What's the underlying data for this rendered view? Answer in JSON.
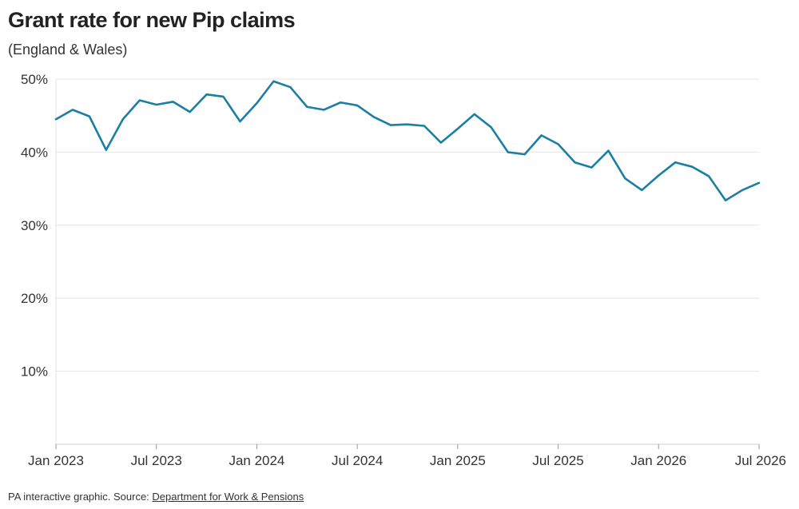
{
  "title": "Grant rate for new Pip claims",
  "subtitle": "(England & Wales)",
  "footer": {
    "prefix": "PA interactive graphic. Source: ",
    "source_link": "Department for Work & Pensions"
  },
  "colors": {
    "line": "#1a7fa3",
    "grid": "#e6e6e6",
    "axis": "#cccccc"
  },
  "chart_data": {
    "type": "line",
    "title": "Grant rate for new Pip claims",
    "subtitle": "(England & Wales)",
    "xlabel": "",
    "ylabel": "",
    "ylim": [
      0,
      50
    ],
    "yticks": [
      10,
      20,
      30,
      40,
      50
    ],
    "ytick_labels": [
      "10%",
      "20%",
      "30%",
      "40%",
      "50%"
    ],
    "xticks": [
      "2023-01",
      "2023-07",
      "2024-01",
      "2024-07",
      "2025-01",
      "2025-07",
      "2026-01",
      "2026-07"
    ],
    "xtick_labels": [
      "Jan 2023",
      "Jul 2023",
      "Jan 2024",
      "Jul 2024",
      "Jan 2025",
      "Jul 2025",
      "Jan 2026",
      "Jul 2026"
    ],
    "grid": true,
    "x": [
      "2023-01",
      "2023-02",
      "2023-03",
      "2023-04",
      "2023-05",
      "2023-06",
      "2023-07",
      "2023-08",
      "2023-09",
      "2023-10",
      "2023-11",
      "2023-12",
      "2024-01",
      "2024-02",
      "2024-03",
      "2024-04",
      "2024-05",
      "2024-06",
      "2024-07",
      "2024-08",
      "2024-09",
      "2024-10",
      "2024-11",
      "2024-12",
      "2025-01",
      "2025-02",
      "2025-03",
      "2025-04",
      "2025-05",
      "2025-06",
      "2025-07",
      "2025-08",
      "2025-09",
      "2025-10",
      "2025-11",
      "2025-12",
      "2026-01",
      "2026-02",
      "2026-03",
      "2026-04",
      "2026-05",
      "2026-06",
      "2026-07"
    ],
    "series": [
      {
        "values": [
          44.5,
          45.8,
          44.9,
          40.3,
          44.5,
          47.1,
          46.5,
          46.9,
          45.5,
          47.9,
          47.6,
          44.2,
          46.7,
          49.7,
          48.9,
          46.2,
          45.8,
          46.8,
          46.4,
          44.8,
          43.7,
          43.8,
          43.6,
          41.3,
          43.2,
          45.2,
          43.4,
          40.0,
          39.7,
          42.3,
          41.1,
          38.6,
          37.9,
          40.2,
          36.4,
          34.8,
          36.8,
          38.6,
          38.0,
          36.7,
          33.4,
          34.8,
          35.8
        ]
      }
    ]
  }
}
